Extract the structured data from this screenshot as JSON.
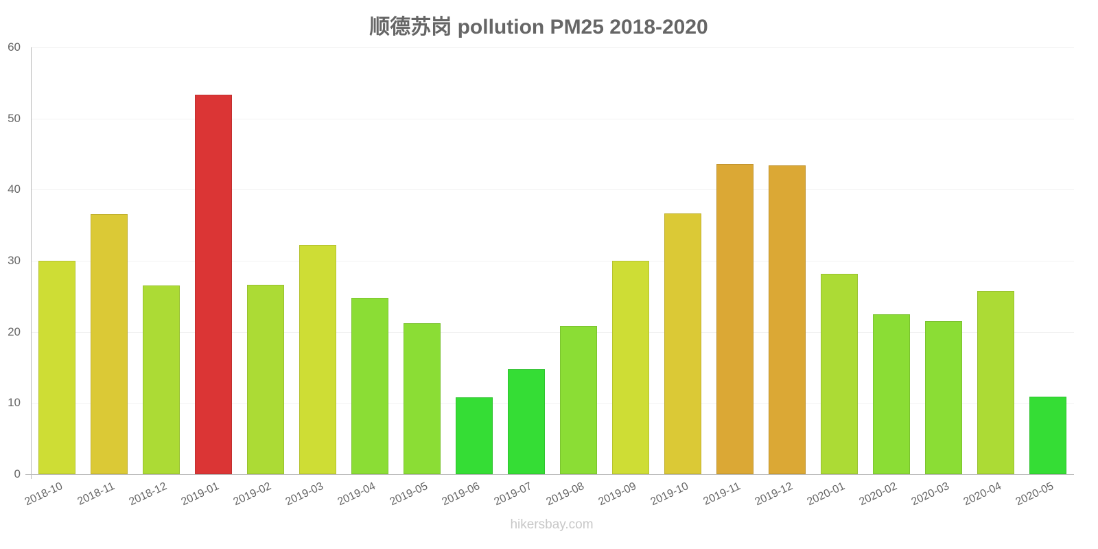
{
  "chart_data": {
    "type": "bar",
    "title": "顺德苏岗 pollution PM25 2018-2020",
    "xlabel": "",
    "ylabel": "",
    "ylim": [
      0,
      60
    ],
    "yticks": [
      0,
      10,
      20,
      30,
      40,
      50,
      60
    ],
    "grid": true,
    "legend": null,
    "categories": [
      "2018-10",
      "2018-11",
      "2018-12",
      "2019-01",
      "2019-02",
      "2019-03",
      "2019-04",
      "2019-05",
      "2019-06",
      "2019-07",
      "2019-08",
      "2019-09",
      "2019-10",
      "2019-11",
      "2019-12",
      "2020-01",
      "2020-02",
      "2020-03",
      "2020-04",
      "2020-05"
    ],
    "values": [
      30,
      36.6,
      26.5,
      53.3,
      26.6,
      32.2,
      24.8,
      21.2,
      10.8,
      14.8,
      20.8,
      30,
      36.7,
      43.6,
      43.4,
      28.2,
      22.5,
      21.5,
      25.8,
      10.9
    ],
    "colors": [
      "#cedd35",
      "#dbc936",
      "#acdb35",
      "#db3535",
      "#acdb35",
      "#cedd35",
      "#8bdd35",
      "#8bdd35",
      "#35dd35",
      "#35dd35",
      "#8bdd35",
      "#cedd35",
      "#dbc936",
      "#dba835",
      "#dba835",
      "#acdb35",
      "#8bdd35",
      "#8bdd35",
      "#acdb35",
      "#35dd35"
    ]
  },
  "watermark": "hikersbay.com"
}
